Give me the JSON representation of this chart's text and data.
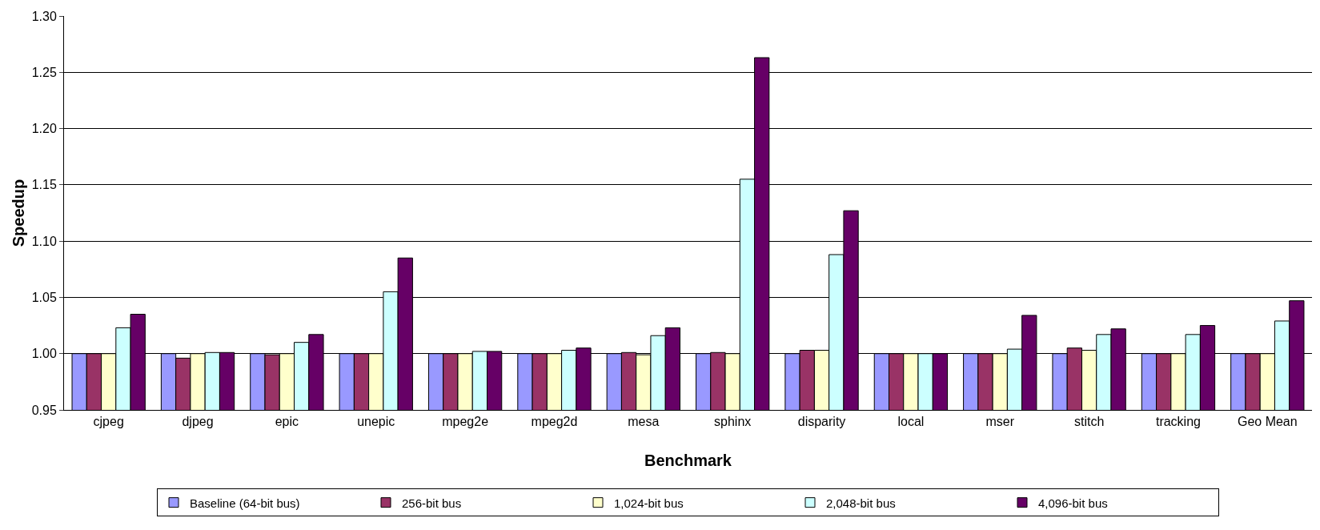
{
  "chart_data": {
    "type": "bar",
    "xlabel": "Benchmark",
    "ylabel": "Speedup",
    "categories": [
      "cjpeg",
      "djpeg",
      "epic",
      "unepic",
      "mpeg2e",
      "mpeg2d",
      "mesa",
      "sphinx",
      "disparity",
      "local",
      "mser",
      "stitch",
      "tracking",
      "Geo Mean"
    ],
    "series": [
      {
        "name": "Baseline (64-bit bus)",
        "color": "#9999ff",
        "values": [
          1,
          1,
          1,
          1,
          1,
          1,
          1,
          1,
          1,
          1,
          1,
          1,
          1,
          1
        ]
      },
      {
        "name": "256-bit bus",
        "color": "#993366",
        "values": [
          1,
          0.996,
          0.999,
          1,
          1,
          1,
          1.001,
          1.001,
          1.003,
          1,
          1,
          1.005,
          1,
          1
        ]
      },
      {
        "name": "1,024-bit bus",
        "color": "#ffffcc",
        "values": [
          1,
          1,
          1,
          1,
          1,
          1,
          0.999,
          1,
          1.003,
          1,
          1,
          1.003,
          1,
          1
        ]
      },
      {
        "name": "2,048-bit bus",
        "color": "#ccffff",
        "values": [
          1.023,
          1.001,
          1.01,
          1.055,
          1.002,
          1.003,
          1.016,
          1.155,
          1.088,
          1,
          1.004,
          1.017,
          1.017,
          1.029
        ]
      },
      {
        "name": "4,096-bit bus",
        "color": "#660066",
        "values": [
          1.035,
          1.001,
          1.017,
          1.085,
          1.002,
          1.005,
          1.023,
          1.263,
          1.127,
          1,
          1.034,
          1.022,
          1.025,
          1.047
        ]
      }
    ],
    "ylim": [
      0.95,
      1.3
    ],
    "yticks": [
      {
        "value": 0.95,
        "label": "0.95"
      },
      {
        "value": 1,
        "label": "1.00"
      },
      {
        "value": 1.05,
        "label": "1.05"
      },
      {
        "value": 1.1,
        "label": "1.10"
      },
      {
        "value": 1.15,
        "label": "1.15"
      },
      {
        "value": 1.2,
        "label": "1.20"
      },
      {
        "value": 1.25,
        "label": "1.25"
      },
      {
        "value": 1.3,
        "label": "1.30"
      }
    ],
    "grid": "y",
    "legend": "bottom"
  }
}
